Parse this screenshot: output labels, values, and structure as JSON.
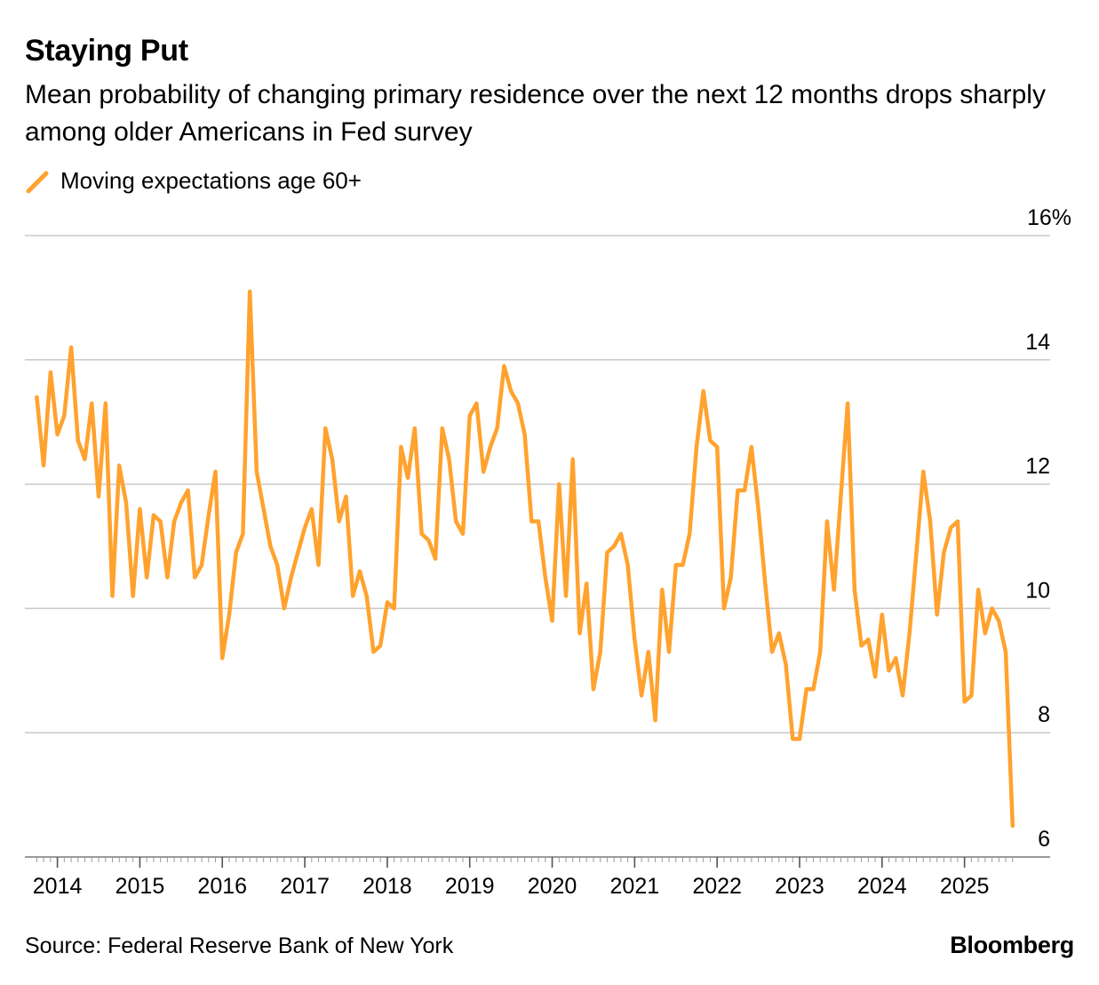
{
  "header": {
    "title": "Staying Put",
    "subtitle": "Mean probability of changing primary residence over the next 12 months drops sharply among older Americans in Fed survey"
  },
  "legend": {
    "label": "Moving expectations age 60+"
  },
  "footer": {
    "source": "Source: Federal Reserve Bank of New York",
    "brand": "Bloomberg"
  },
  "colors": {
    "series": "#ffa22e",
    "grid": "#c8c8c8",
    "axis": "#9a9a9a"
  },
  "chart_data": {
    "type": "line",
    "title": "Staying Put",
    "ylabel": "",
    "xlabel": "",
    "ylim": [
      6,
      16
    ],
    "yticks": [
      6,
      8,
      10,
      12,
      14,
      16
    ],
    "ytick_labels": [
      "6",
      "8",
      "10",
      "12",
      "14",
      "16%"
    ],
    "xticks": [
      "2014",
      "2015",
      "2016",
      "2017",
      "2018",
      "2019",
      "2020",
      "2021",
      "2022",
      "2023",
      "2024",
      "2025"
    ],
    "x_start": "2013-10",
    "x_end": "2025-08",
    "grid": true,
    "legend_position": "top-left",
    "series": [
      {
        "name": "Moving expectations age 60+",
        "values": [
          13.4,
          12.3,
          13.8,
          12.8,
          13.1,
          14.2,
          12.7,
          12.4,
          13.3,
          11.8,
          13.3,
          10.2,
          12.3,
          11.7,
          10.2,
          11.6,
          10.5,
          11.5,
          11.4,
          10.5,
          11.4,
          11.7,
          11.9,
          10.5,
          10.7,
          11.5,
          12.2,
          9.2,
          9.9,
          10.9,
          11.2,
          15.1,
          12.2,
          11.6,
          11.0,
          10.7,
          10.0,
          10.5,
          10.9,
          11.3,
          11.6,
          10.7,
          12.9,
          12.4,
          11.4,
          11.8,
          10.2,
          10.6,
          10.2,
          9.3,
          9.4,
          10.1,
          10.0,
          12.6,
          12.1,
          12.9,
          11.2,
          11.1,
          10.8,
          12.9,
          12.4,
          11.4,
          11.2,
          13.1,
          13.3,
          12.2,
          12.6,
          12.9,
          13.9,
          13.5,
          13.3,
          12.8,
          11.4,
          11.4,
          10.5,
          9.8,
          12.0,
          10.2,
          12.4,
          9.6,
          10.4,
          8.7,
          9.3,
          10.9,
          11.0,
          11.2,
          10.7,
          9.5,
          8.6,
          9.3,
          8.2,
          10.3,
          9.3,
          10.7,
          10.7,
          11.2,
          12.6,
          13.5,
          12.7,
          12.6,
          10.0,
          10.5,
          11.9,
          11.9,
          12.6,
          11.6,
          10.4,
          9.3,
          9.6,
          9.1,
          7.9,
          7.9,
          8.7,
          8.7,
          9.3,
          11.4,
          10.3,
          11.8,
          13.3,
          10.3,
          9.4,
          9.5,
          8.9,
          9.9,
          9.0,
          9.2,
          8.6,
          9.6,
          10.9,
          12.2,
          11.4,
          9.9,
          10.9,
          11.3,
          11.4,
          8.5,
          8.6,
          10.3,
          9.6,
          10.0,
          9.8,
          9.3,
          6.5
        ]
      }
    ]
  }
}
